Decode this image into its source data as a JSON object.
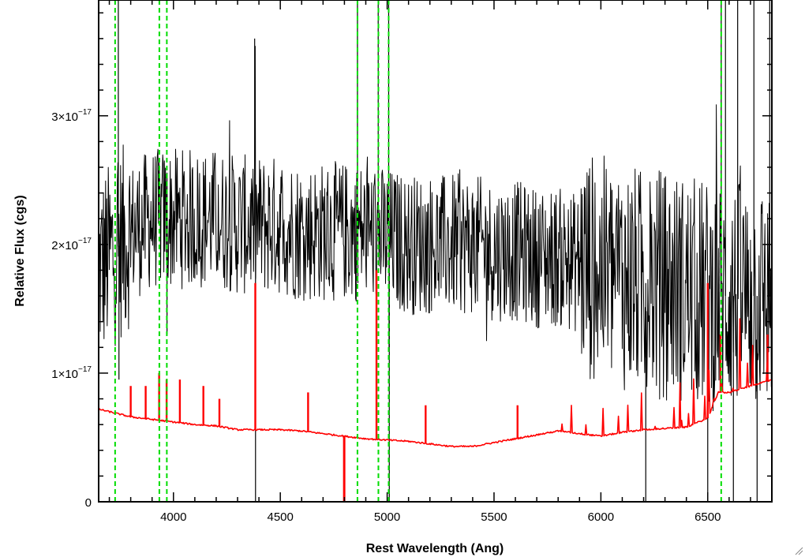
{
  "chart_data": {
    "type": "line",
    "title": "",
    "xlabel": "Rest Wavelength (Ang)",
    "ylabel": "Relative Flux (cgs)",
    "xlim": [
      3650,
      6800
    ],
    "ylim": [
      0,
      3.9e-17
    ],
    "x_ticks": [
      4000,
      4500,
      5000,
      5500,
      6000,
      6500
    ],
    "x_tick_labels": [
      "4000",
      "4500",
      "5000",
      "5500",
      "6000",
      "6500"
    ],
    "y_ticks": [
      0,
      1e-17,
      2e-17,
      3e-17
    ],
    "y_tick_labels": [
      {
        "mantissa": "0",
        "exponent": ""
      },
      {
        "mantissa": "1×10",
        "exponent": "−17"
      },
      {
        "mantissa": "2×10",
        "exponent": "−17"
      },
      {
        "mantissa": "3×10",
        "exponent": "−17"
      }
    ],
    "grid": false,
    "legend": "none",
    "series": [
      {
        "color": "#000000",
        "style": "noisy",
        "x": [
          3650,
          3700,
          3800,
          3900,
          4000,
          4100,
          4200,
          4300,
          4400,
          4500,
          4600,
          4700,
          4800,
          4900,
          5000,
          5100,
          5200,
          5300,
          5400,
          5500,
          5600,
          5700,
          5800,
          5900,
          6000,
          6100,
          6200,
          6300,
          6400,
          6500,
          6600,
          6700,
          6800
        ],
        "values": [
          1.8e-17,
          1.9e-17,
          2.1e-17,
          2.2e-17,
          2.2e-17,
          2.2e-17,
          2.2e-17,
          2.15e-17,
          2.15e-17,
          2.15e-17,
          2.1e-17,
          2.1e-17,
          2.1e-17,
          2.1e-17,
          2.05e-17,
          2e-17,
          2e-17,
          2e-17,
          2e-17,
          1.95e-17,
          1.95e-17,
          1.9e-17,
          1.9e-17,
          1.85e-17,
          1.8e-17,
          1.75e-17,
          1.7e-17,
          1.7e-17,
          1.65e-17,
          1.6e-17,
          1.6e-17,
          1.6e-17,
          1.6e-17
        ],
        "spikes": [
          [
            3742,
            4.5e-17
          ],
          [
            3745,
            9.5e-18
          ],
          [
            3932,
            2.5e-17
          ],
          [
            3970,
            1.3e-17
          ],
          [
            4380,
            3.6e-17
          ],
          [
            4384,
            0.0
          ],
          [
            4861,
            4e-17
          ],
          [
            4863,
            1.7e-17
          ],
          [
            4958,
            4.5e-17
          ],
          [
            5007,
            4.5e-17
          ],
          [
            5009,
            1.2e-17
          ],
          [
            5010,
            0.0
          ],
          [
            6210,
            0.0
          ],
          [
            6500,
            0.0
          ],
          [
            6563,
            4.5e-17
          ],
          [
            6583,
            4.5e-17
          ],
          [
            6620,
            0.0
          ],
          [
            6640,
            4.5e-17
          ],
          [
            6716,
            4.5e-17
          ],
          [
            6731,
            0.0
          ],
          [
            6790,
            4.5e-17
          ]
        ]
      },
      {
        "color": "#ff0000",
        "style": "smooth",
        "x": [
          3650,
          3700,
          3750,
          3800,
          3900,
          4000,
          4100,
          4200,
          4300,
          4400,
          4500,
          4600,
          4700,
          4800,
          4900,
          5000,
          5100,
          5200,
          5300,
          5400,
          5500,
          5600,
          5700,
          5800,
          5900,
          6000,
          6100,
          6200,
          6300,
          6400,
          6500,
          6550,
          6600,
          6700,
          6800
        ],
        "values": [
          7.2e-18,
          7e-18,
          6.8e-18,
          6.6e-18,
          6.4e-18,
          6.2e-18,
          6e-18,
          5.9e-18,
          5.6e-18,
          5.6e-18,
          5.6e-18,
          5.5e-18,
          5.3e-18,
          5.1e-18,
          4.9e-18,
          4.8e-18,
          4.7e-18,
          4.5e-18,
          4.3e-18,
          4.3e-18,
          4.6e-18,
          4.9e-18,
          5.2e-18,
          5.5e-18,
          5.3e-18,
          5.1e-18,
          5.4e-18,
          5.6e-18,
          5.7e-18,
          5.8e-18,
          6.5e-18,
          8.5e-18,
          8.5e-18,
          9e-18,
          9.5e-18
        ],
        "spikes": [
          [
            3800,
            9e-18
          ],
          [
            3870,
            9e-18
          ],
          [
            3933,
            1e-17
          ],
          [
            3968,
            9.5e-18
          ],
          [
            4030,
            9.5e-18
          ],
          [
            4140,
            9e-18
          ],
          [
            4215,
            8e-18
          ],
          [
            4383,
            1.7e-17
          ],
          [
            4630,
            8.5e-18
          ],
          [
            4798,
            0.0
          ],
          [
            4800,
            0.0
          ],
          [
            4950,
            1.8e-17
          ],
          [
            5180,
            7.5e-18
          ],
          [
            5610,
            7.5e-18
          ],
          [
            6500,
            1.7e-17
          ],
          [
            6560,
            1.3e-17
          ],
          [
            6780,
            1.3e-17
          ]
        ]
      }
    ],
    "reference_lines": {
      "color": "#00dd00",
      "style": "dashed",
      "x": [
        3727,
        3934,
        3969,
        4861,
        4959,
        5007,
        6563
      ]
    }
  }
}
